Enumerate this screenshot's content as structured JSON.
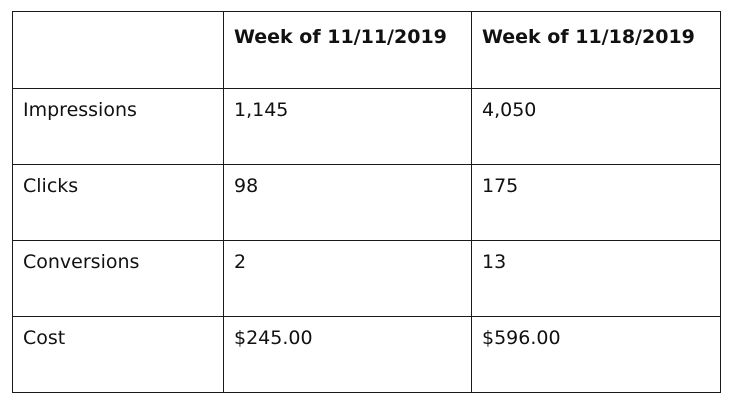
{
  "table": {
    "header": [
      "",
      "Week of 11/11/2019",
      "Week of 11/18/2019"
    ],
    "rows": [
      {
        "label": "Impressions",
        "week1": "1,145",
        "week2": "4,050"
      },
      {
        "label": "Clicks",
        "week1": "98",
        "week2": "175"
      },
      {
        "label": "Conversions",
        "week1": "2",
        "week2": "13"
      },
      {
        "label": "Cost",
        "week1": "$245.00",
        "week2": "$596.00"
      }
    ]
  }
}
